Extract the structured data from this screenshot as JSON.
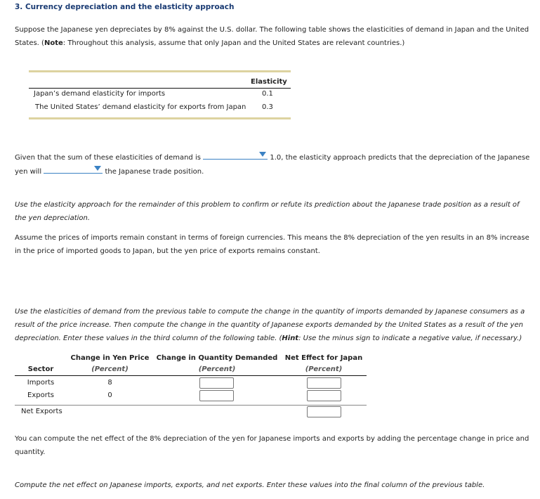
{
  "title": "3. Currency depreciation and the elasticity approach",
  "intro": {
    "text": "Suppose the Japanese yen depreciates by 8% against the U.S. dollar. The following table shows the elasticities of demand in Japan and the United States. (",
    "note_label": "Note",
    "note_text": ": Throughout this analysis, assume that only Japan and the United States are relevant countries.)"
  },
  "elasticity_table": {
    "header": "Elasticity",
    "rows": [
      {
        "label": "Japan’s demand elasticity for imports",
        "value": "0.1"
      },
      {
        "label": "The United States’ demand elasticity for exports from Japan",
        "value": "0.3"
      }
    ]
  },
  "question": {
    "part1": "Given that the sum of these elasticities of demand is",
    "part2": "1.0, the elasticity approach predicts that the depreciation of the Japanese yen will",
    "part3": "the Japanese trade position.",
    "dropdown1": "",
    "dropdown2": ""
  },
  "para_use": "Use the elasticity approach for the remainder of this problem to confirm or refute its prediction about the Japanese trade position as a result of the yen depreciation.",
  "para_assume": "Assume the prices of imports remain constant in terms of foreign currencies. This means the 8% depreciation of the yen results in an 8% increase in the price of imported goods to Japan, but the yen price of exports remains constant.",
  "para_compute": {
    "text": "Use the elasticities of demand from the previous table to compute the change in the quantity of imports demanded by Japanese consumers as a result of the price increase. Then compute the change in the quantity of Japanese exports demanded by the United States as a result of the yen depreciation. Enter these values in the third column of the following table. (",
    "hint_label": "Hint",
    "hint_text": ": Use the minus sign to indicate a negative value, if necessary.)"
  },
  "effects_table": {
    "headers": [
      {
        "title": "Sector",
        "sub": ""
      },
      {
        "title": "Change in Yen Price",
        "sub": "(Percent)"
      },
      {
        "title": "Change in Quantity Demanded",
        "sub": "(Percent)"
      },
      {
        "title": "Net Effect for Japan",
        "sub": "(Percent)"
      }
    ],
    "rows": [
      {
        "sector": "Imports",
        "price": "8",
        "quantity": "",
        "net": ""
      },
      {
        "sector": "Exports",
        "price": "0",
        "quantity": "",
        "net": ""
      }
    ],
    "net_row": {
      "label": "Net Exports",
      "net": ""
    }
  },
  "para_net": "You can compute the net effect of the 8% depreciation of the yen for Japanese imports and exports by adding the percentage change in price and quantity.",
  "para_final": "Compute the net effect on Japanese imports, exports, and net exports. Enter these values into the final column of the previous table."
}
